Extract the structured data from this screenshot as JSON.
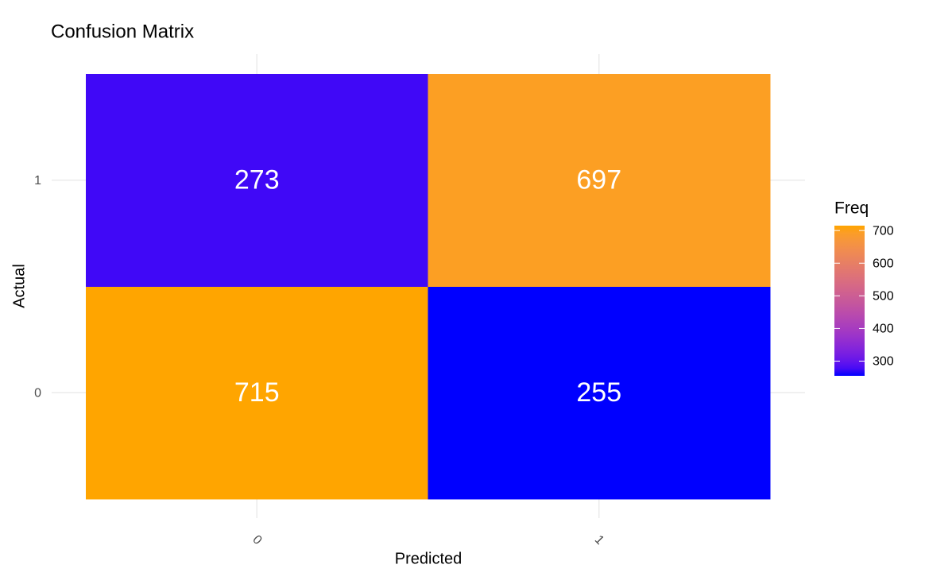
{
  "chart_data": {
    "type": "heatmap",
    "title": "Confusion Matrix",
    "x_label": "Predicted",
    "y_label": "Actual",
    "x_categories": [
      "0",
      "1"
    ],
    "y_categories": [
      "0",
      "1"
    ],
    "values": [
      [
        715,
        255
      ],
      [
        273,
        697
      ]
    ],
    "low_color": "#0000ff",
    "high_color": "#ffa500",
    "legend_title": "Freq",
    "legend_ticks": [
      300,
      400,
      500,
      600,
      700
    ],
    "grid": true
  }
}
